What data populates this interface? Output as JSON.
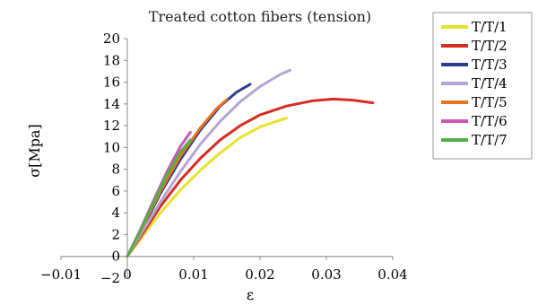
{
  "chart_data": {
    "type": "line",
    "title": "Treated cotton fibers (tension)",
    "xlabel": "ε",
    "ylabel": "σ[Mpa]",
    "xlim": [
      -0.01,
      0.04
    ],
    "ylim": [
      -2,
      20
    ],
    "x_ticks": [
      "−0.01",
      "0",
      "0.01",
      "0.02",
      "0.03",
      "0.04"
    ],
    "x_tick_values": [
      -0.01,
      0,
      0.01,
      0.02,
      0.03,
      0.04
    ],
    "y_ticks": [
      "−2",
      "0",
      "2",
      "4",
      "6",
      "8",
      "10",
      "12",
      "14",
      "16",
      "18",
      "20"
    ],
    "y_tick_values": [
      -2,
      0,
      2,
      4,
      6,
      8,
      10,
      12,
      14,
      16,
      18,
      20
    ],
    "grid": false,
    "legend_position": "right",
    "series": [
      {
        "name": "T/T/1",
        "color": "#e6e22e",
        "points": [
          [
            0,
            0
          ],
          [
            0.002,
            1.6
          ],
          [
            0.005,
            4.0
          ],
          [
            0.008,
            6.1
          ],
          [
            0.011,
            7.9
          ],
          [
            0.014,
            9.5
          ],
          [
            0.017,
            10.9
          ],
          [
            0.02,
            11.9
          ],
          [
            0.024,
            12.7
          ]
        ]
      },
      {
        "name": "T/T/2",
        "color": "#d62d20",
        "points": [
          [
            0,
            0
          ],
          [
            0.002,
            1.8
          ],
          [
            0.005,
            4.6
          ],
          [
            0.008,
            7.0
          ],
          [
            0.011,
            9.0
          ],
          [
            0.014,
            10.7
          ],
          [
            0.017,
            12.0
          ],
          [
            0.02,
            13.0
          ],
          [
            0.024,
            13.8
          ],
          [
            0.028,
            14.3
          ],
          [
            0.031,
            14.45
          ],
          [
            0.034,
            14.35
          ],
          [
            0.037,
            14.1
          ]
        ]
      },
      {
        "name": "T/T/3",
        "color": "#2a3d8f",
        "points": [
          [
            0,
            0
          ],
          [
            0.002,
            2.2
          ],
          [
            0.005,
            5.8
          ],
          [
            0.008,
            8.9
          ],
          [
            0.011,
            11.6
          ],
          [
            0.014,
            13.8
          ],
          [
            0.0165,
            15.1
          ],
          [
            0.0185,
            15.8
          ]
        ]
      },
      {
        "name": "T/T/4",
        "color": "#b3a4d6",
        "points": [
          [
            0,
            0
          ],
          [
            0.002,
            2.0
          ],
          [
            0.005,
            5.0
          ],
          [
            0.008,
            7.8
          ],
          [
            0.011,
            10.3
          ],
          [
            0.014,
            12.4
          ],
          [
            0.017,
            14.2
          ],
          [
            0.02,
            15.6
          ],
          [
            0.023,
            16.7
          ],
          [
            0.0245,
            17.1
          ]
        ]
      },
      {
        "name": "T/T/5",
        "color": "#e8731c",
        "points": [
          [
            0,
            0
          ],
          [
            0.002,
            2.3
          ],
          [
            0.005,
            6.0
          ],
          [
            0.008,
            9.2
          ],
          [
            0.011,
            11.8
          ],
          [
            0.0135,
            13.6
          ],
          [
            0.015,
            14.4
          ]
        ]
      },
      {
        "name": "T/T/6",
        "color": "#c957b4",
        "points": [
          [
            0,
            0
          ],
          [
            0.002,
            2.5
          ],
          [
            0.004,
            5.2
          ],
          [
            0.006,
            7.8
          ],
          [
            0.008,
            10.1
          ],
          [
            0.0095,
            11.4
          ]
        ]
      },
      {
        "name": "T/T/7",
        "color": "#4fb248",
        "points": [
          [
            0,
            0
          ],
          [
            0.002,
            2.4
          ],
          [
            0.004,
            5.0
          ],
          [
            0.006,
            7.5
          ],
          [
            0.008,
            9.6
          ],
          [
            0.0095,
            10.7
          ]
        ]
      }
    ]
  }
}
